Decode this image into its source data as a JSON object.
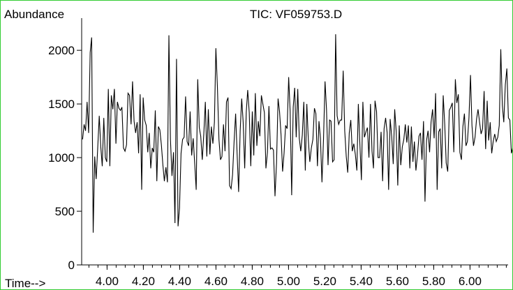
{
  "chart_data": {
    "type": "line",
    "title": "TIC: VF059753.D",
    "ylabel": "Abundance",
    "xlabel": "Time-->",
    "xlim": [
      3.86,
      6.21
    ],
    "ylim": [
      0,
      2300
    ],
    "x_ticks": [
      "4.00",
      "4.20",
      "4.40",
      "4.60",
      "4.80",
      "5.00",
      "5.20",
      "5.40",
      "5.60",
      "5.80",
      "6.00"
    ],
    "y_ticks": [
      "0",
      "500",
      "1000",
      "1500",
      "2000"
    ],
    "grid": false,
    "series": [
      {
        "color": "#000000",
        "x_start": 3.865,
        "x_step": 0.00835,
        "values": [
          1170,
          1310,
          1250,
          1520,
          1230,
          1980,
          2120,
          300,
          1010,
          800,
          1090,
          1390,
          1100,
          920,
          1370,
          1000,
          960,
          1640,
          920,
          1580,
          1450,
          1640,
          1130,
          1520,
          1460,
          1440,
          1470,
          1090,
          1060,
          1120,
          1600,
          1580,
          1310,
          1710,
          1340,
          1230,
          1330,
          1040,
          1590,
          700,
          1560,
          1350,
          1300,
          1050,
          1230,
          900,
          1090,
          1050,
          1440,
          780,
          1290,
          1260,
          1120,
          930,
          780,
          910,
          770,
          2140,
          1170,
          830,
          1050,
          390,
          1920,
          360,
          530,
          1040,
          1170,
          1190,
          1570,
          1150,
          1110,
          1430,
          1020,
          1180,
          940,
          700,
          1730,
          1280,
          1200,
          980,
          1220,
          1520,
          1010,
          1450,
          1030,
          1290,
          1130,
          1330,
          2020,
          1660,
          1170,
          980,
          1010,
          1310,
          1060,
          1520,
          1560,
          740,
          710,
          840,
          1150,
          1410,
          1040,
          680,
          1250,
          1550,
          1330,
          900,
          1420,
          1630,
          1420,
          920,
          1430,
          1020,
          1600,
          1110,
          1340,
          1200,
          1580,
          1500,
          1420,
          900,
          1050,
          1480,
          1080,
          1090,
          1070,
          640,
          950,
          1550,
          1430,
          1210,
          870,
          1040,
          1300,
          1270,
          1750,
          1430,
          650,
          1470,
          1650,
          1190,
          1640,
          1180,
          1060,
          1210,
          1520,
          880,
          1500,
          1160,
          960,
          1090,
          1170,
          1460,
          1410,
          920,
          1340,
          1180,
          770,
          1170,
          1710,
          1450,
          930,
          1350,
          1340,
          960,
          980,
          2150,
          1390,
          1310,
          1350,
          1350,
          1810,
          1250,
          1010,
          860,
          1230,
          1350,
          1060,
          1130,
          1030,
          880,
          1500,
          1130,
          790,
          1520,
          1190,
          1240,
          1280,
          1000,
          1500,
          1060,
          900,
          1530,
          1430,
          1000,
          1000,
          1240,
          780,
          1270,
          1370,
          1230,
          700,
          1360,
          1200,
          940,
          1450,
          1240,
          740,
          1300,
          930,
          1100,
          1170,
          1310,
          1140,
          1300,
          900,
          1290,
          960,
          1150,
          880,
          1020,
          1200,
          1230,
          980,
          1340,
          590,
          1160,
          1250,
          1050,
          1330,
          1450,
          1180,
          1600,
          700,
          1240,
          1270,
          900,
          1580,
          1310,
          950,
          870,
          1440,
          1470,
          1510,
          1050,
          1730,
          1510,
          1590,
          1050,
          980,
          1290,
          1410,
          1110,
          1150,
          1370,
          1770,
          1300,
          1110,
          1190,
          1360,
          1450,
          1330,
          1220,
          1270,
          1620,
          1080,
          1530,
          1160,
          1330,
          1040,
          1150,
          1220,
          1150,
          1190,
          1300,
          2010,
          1490,
          1330,
          1680,
          1830,
          1370,
          1350,
          1040,
          1100,
          1370,
          1050,
          1650,
          950,
          1840
        ]
      }
    ]
  }
}
